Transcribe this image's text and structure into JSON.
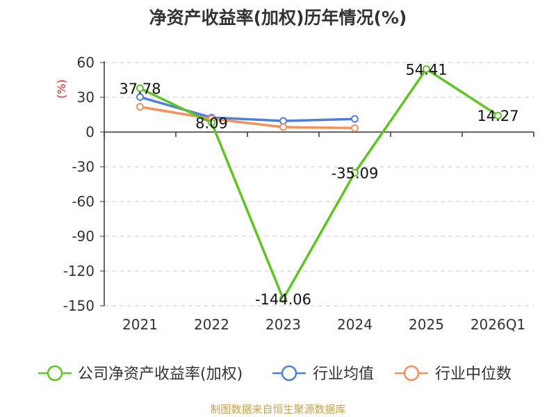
{
  "title": "净资产收益率(加权)历年情况(%)",
  "source": "制图数据来自恒生聚源数据库",
  "chart_data": {
    "type": "line",
    "title": "净资产收益率(加权)历年情况(%)",
    "ylabel": "(%)",
    "categories": [
      "2021",
      "2022",
      "2023",
      "2024",
      "2025",
      "2026Q1"
    ],
    "ylim": [
      -150,
      60
    ],
    "yticks": [
      60,
      30,
      0,
      -30,
      -60,
      -90,
      -120,
      -150
    ],
    "grid": true,
    "legend_position": "bottom",
    "series": [
      {
        "name": "公司净资产收益率(加权)",
        "color": "#5ec424",
        "values": [
          37.78,
          8.09,
          -144.06,
          -35.09,
          54.41,
          14.27
        ],
        "labels": [
          "37.78",
          "8.09",
          "-144.06",
          "-35.09",
          "54.41",
          "14.27"
        ]
      },
      {
        "name": "行业均值",
        "color": "#4f7fdb",
        "values": [
          30.2,
          12.5,
          9.6,
          11.3,
          null,
          null
        ]
      },
      {
        "name": "行业中位数",
        "color": "#f5905a",
        "values": [
          21.8,
          11.4,
          4.3,
          3.4,
          null,
          null
        ]
      }
    ]
  }
}
